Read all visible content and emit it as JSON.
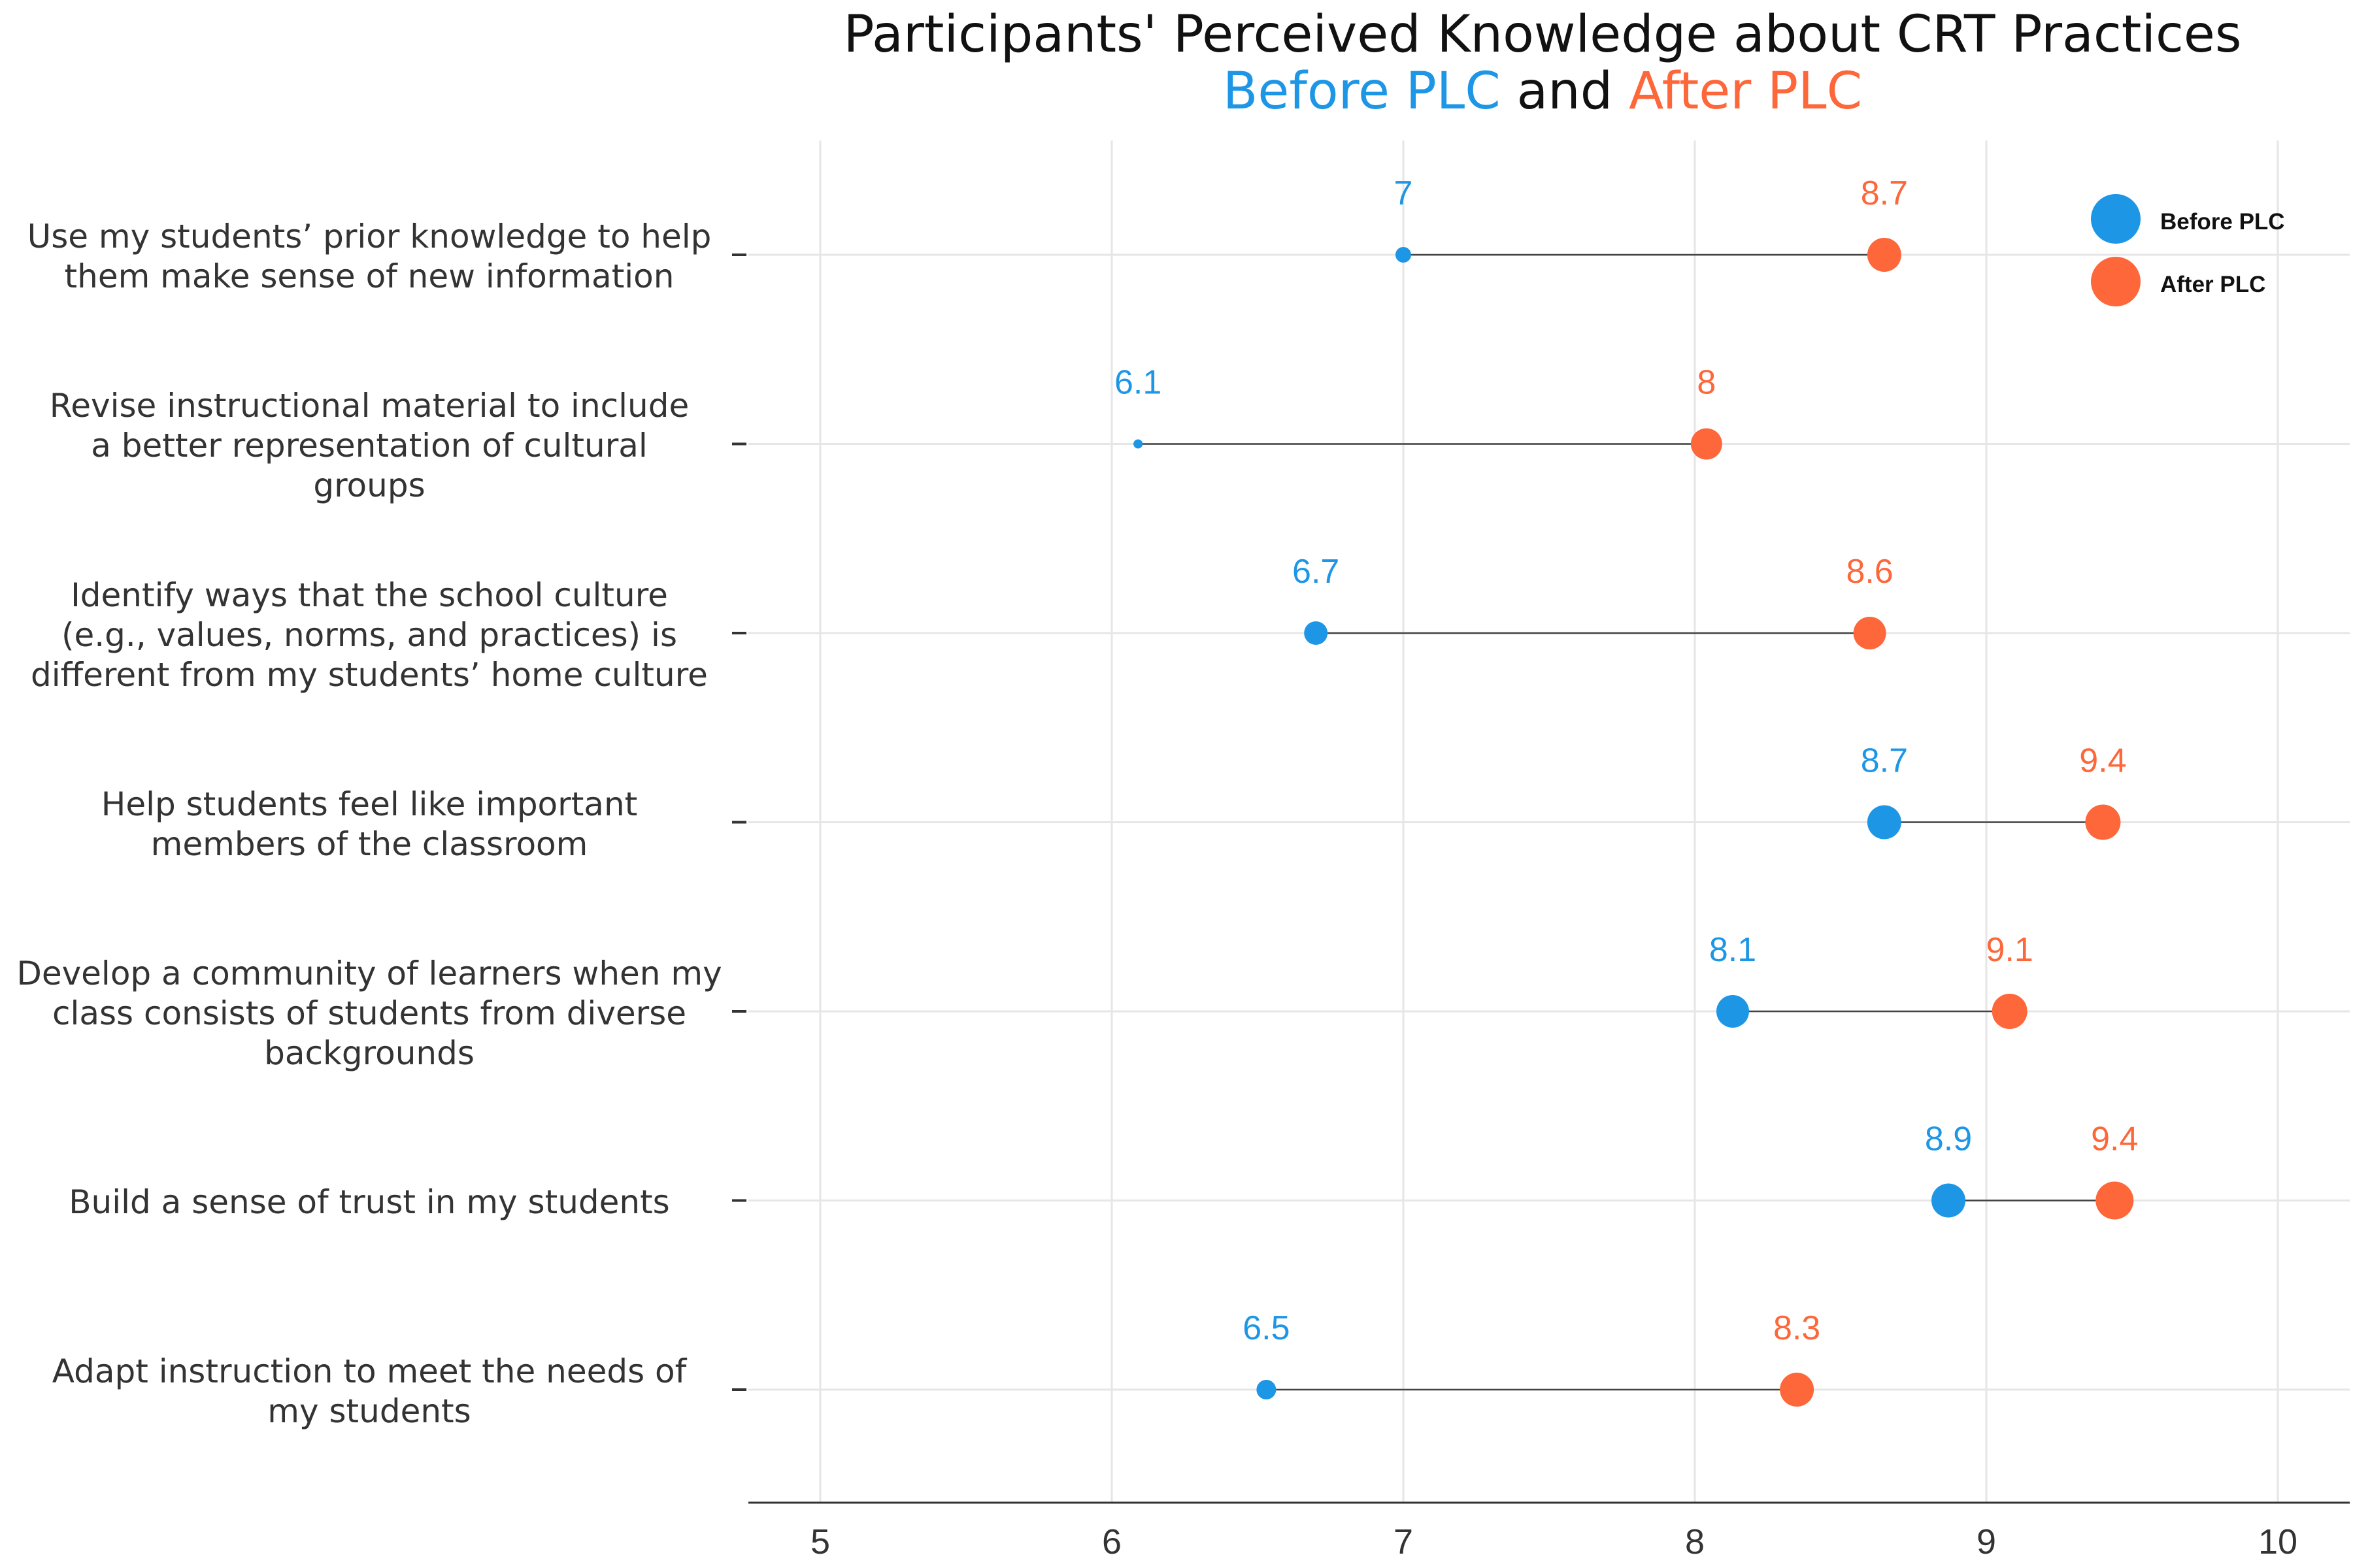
{
  "chart_data": {
    "type": "dot-arrow",
    "title": "Participants' Perceived Knowledge about CRT Practices",
    "subtitle_parts": [
      {
        "text": "Before PLC",
        "color": "#1e96e6"
      },
      {
        "text": " and ",
        "color": "#111111"
      },
      {
        "text": "After PLC",
        "color": "#fd673a"
      }
    ],
    "xlim": [
      4.75,
      10.25
    ],
    "x_ticks": [
      5,
      6,
      7,
      8,
      9,
      10
    ],
    "grid": true,
    "legend_position": "top-right",
    "colors": {
      "before": "#1e96e6",
      "after": "#fd673a",
      "arrow": "#444444",
      "grid": "#e6e6e6"
    },
    "series": [
      {
        "name": "Before PLC",
        "key": "before"
      },
      {
        "name": "After PLC",
        "key": "after"
      }
    ],
    "categories": [
      "Use my students’ prior knowledge to help\nthem make sense of new information",
      "Revise instructional material to include\na better representation of cultural\ngroups",
      "Identify ways that the school culture\n(e.g., values, norms, and practices) is\ndifferent from my students’ home culture",
      "Help students feel like important\nmembers of the classroom",
      "Develop a community of learners when my\nclass consists of students from diverse\nbackgrounds",
      "Build a sense of trust in my students",
      "Adapt instruction to meet the needs of\nmy students"
    ],
    "before_values": [
      7.0,
      6.09,
      6.7,
      8.65,
      8.13,
      8.87,
      6.53
    ],
    "after_values": [
      8.65,
      8.04,
      8.6,
      9.4,
      9.08,
      9.44,
      8.35
    ],
    "before_labels": [
      "7",
      "6.1",
      "6.7",
      "8.7",
      "8.1",
      "8.9",
      "6.5"
    ],
    "after_labels": [
      "8.7",
      "8",
      "8.6",
      "9.4",
      "9.1",
      "9.4",
      "8.3"
    ]
  }
}
